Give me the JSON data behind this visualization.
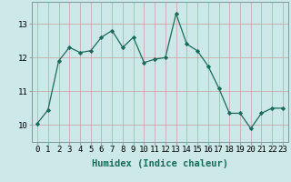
{
  "x": [
    0,
    1,
    2,
    3,
    4,
    5,
    6,
    7,
    8,
    9,
    10,
    11,
    12,
    13,
    14,
    15,
    16,
    17,
    18,
    19,
    20,
    21,
    22,
    23
  ],
  "y": [
    10.05,
    10.45,
    11.9,
    12.3,
    12.15,
    12.2,
    12.6,
    12.8,
    12.3,
    12.6,
    11.85,
    11.95,
    12.0,
    13.3,
    12.4,
    12.2,
    11.75,
    11.1,
    10.35,
    10.35,
    9.9,
    10.35,
    10.5,
    10.5
  ],
  "line_color": "#1a6b5a",
  "marker": "D",
  "marker_size": 2.2,
  "bg_color": "#cce8e8",
  "grid_color": "#b0c8c8",
  "xlabel": "Humidex (Indice chaleur)",
  "xlabel_fontsize": 7.5,
  "ylabel_ticks": [
    10,
    11,
    12,
    13
  ],
  "xlim": [
    -0.5,
    23.5
  ],
  "ylim": [
    9.5,
    13.65
  ],
  "tick_fontsize": 6.5
}
